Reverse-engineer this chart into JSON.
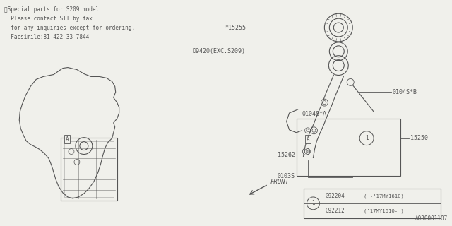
{
  "bg_color": "#f0f0eb",
  "line_color": "#555555",
  "note_lines": [
    "※Special parts for S209 model",
    "  Please contact STI by fax",
    "  for any inquiries except for ordering.",
    "  Facsimile:81-422-33-7844"
  ],
  "legend_rows": [
    {
      "part": "G92204",
      "desc": "( -'17MY1610)"
    },
    {
      "part": "G92212",
      "desc": "('17MY1610- )"
    }
  ],
  "doc_number": "A030001107"
}
